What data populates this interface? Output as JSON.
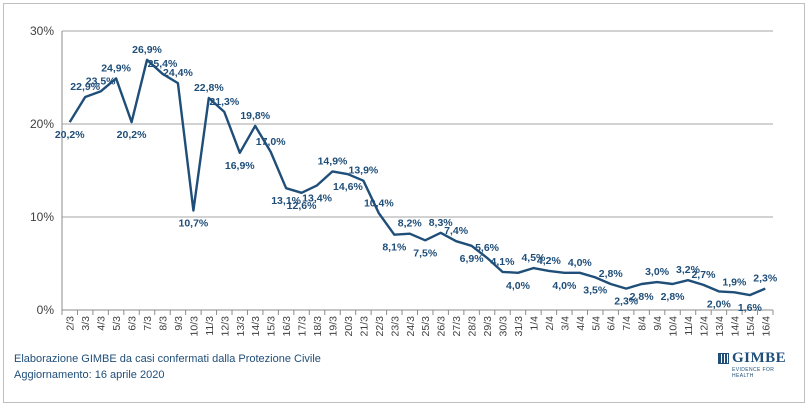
{
  "chart_data": {
    "type": "line",
    "title": "",
    "xlabel": "",
    "ylabel": "",
    "ylim": [
      0,
      30
    ],
    "y_ticks": [
      "0%",
      "10%",
      "20%",
      "30%"
    ],
    "grid": true,
    "legend": "none",
    "line_color": "#1f4e79",
    "label_color": "#1f4e79",
    "categories": [
      "2/3",
      "3/3",
      "4/3",
      "5/3",
      "6/3",
      "7/3",
      "8/3",
      "9/3",
      "10/3",
      "11/3",
      "12/3",
      "13/3",
      "14/3",
      "15/3",
      "16/3",
      "17/3",
      "18/3",
      "19/3",
      "20/3",
      "21/3",
      "22/3",
      "23/3",
      "24/3",
      "25/3",
      "26/3",
      "27/3",
      "28/3",
      "29/3",
      "30/3",
      "31/3",
      "1/4",
      "2/4",
      "3/4",
      "4/4",
      "5/4",
      "6/4",
      "7/4",
      "8/4",
      "9/4",
      "10/4",
      "11/4",
      "12/4",
      "13/4",
      "14/4",
      "15/4",
      "16/4"
    ],
    "values": [
      20.2,
      22.9,
      23.5,
      24.9,
      20.2,
      26.9,
      25.4,
      24.4,
      10.7,
      22.8,
      21.3,
      16.9,
      19.8,
      17.0,
      13.1,
      12.6,
      13.4,
      14.9,
      14.6,
      13.9,
      10.4,
      8.1,
      8.2,
      7.5,
      8.3,
      7.4,
      6.9,
      5.6,
      4.1,
      4.0,
      4.5,
      4.2,
      4.0,
      4.0,
      3.5,
      2.8,
      2.3,
      2.8,
      3.0,
      2.8,
      3.2,
      2.7,
      2.0,
      1.9,
      1.6,
      2.3
    ],
    "data_labels": [
      "20,2%",
      "22,9%",
      "23,5%",
      "24,9%",
      "20,2%",
      "26,9%",
      "25,4%",
      "24,4%",
      "10,7%",
      "22,8%",
      "21,3%",
      "16,9%",
      "19,8%",
      "17,0%",
      "13,1%",
      "12,6%",
      "13,4%",
      "14,9%",
      "14,6%",
      "13,9%",
      "10,4%",
      "8,1%",
      "8,2%",
      "7,5%",
      "8,3%",
      "7,4%",
      "6,9%",
      "5,6%",
      "4,1%",
      "4,0%",
      "4,5%",
      "4,2%",
      "4,0%",
      "4,0%",
      "3,5%",
      "2,8%",
      "2,3%",
      "2,8%",
      "3,0%",
      "2,8%",
      "3,2%",
      "2,7%",
      "2,0%",
      "1,9%",
      "1,6%",
      "2,3%"
    ],
    "label_positions": [
      "below",
      "above",
      "above",
      "above",
      "below",
      "above",
      "above",
      "above",
      "below",
      "above",
      "above",
      "below",
      "above",
      "above",
      "below",
      "below",
      "below",
      "above",
      "below",
      "above",
      "above",
      "below",
      "above",
      "below",
      "above",
      "above",
      "below",
      "above",
      "above",
      "below",
      "above",
      "above",
      "below",
      "above",
      "below",
      "above",
      "below",
      "below",
      "above",
      "below",
      "above",
      "above",
      "below",
      "above",
      "below",
      "above"
    ]
  },
  "footer": {
    "line1": "Elaborazione GIMBE da casi confermati dalla Protezione Civile",
    "line2": "Aggiornamento: 16 aprile 2020"
  },
  "logo": {
    "name": "GIMBE",
    "tagline": "EVIDENCE FOR HEALTH"
  }
}
